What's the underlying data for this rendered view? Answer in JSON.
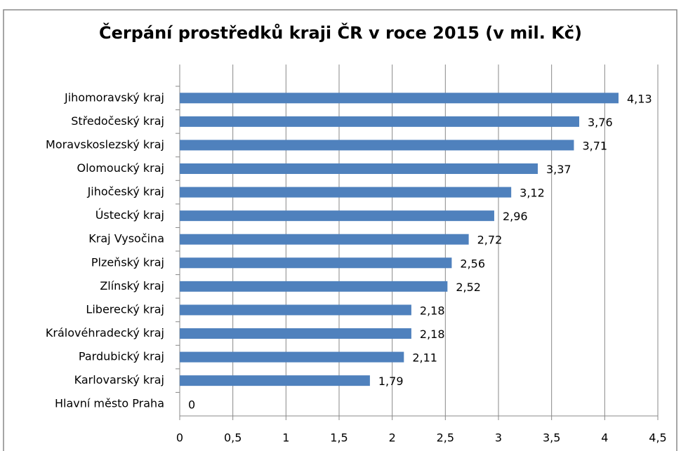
{
  "chart_data": {
    "type": "barh",
    "title": "Čerpání prostředků kraji ČR v roce 2015 (v mil. Kč)",
    "categories": [
      "Jihomoravský kraj",
      "Středočeský kraj",
      "Moravskoslezský kraj",
      "Olomoucký kraj",
      "Jihočeský kraj",
      "Ústecký kraj",
      "Kraj Vysočina",
      "Plzeňský kraj",
      "Zlínský kraj",
      "Liberecký kraj",
      "Královéhradecký kraj",
      "Pardubický kraj",
      "Karlovarský kraj",
      "Hlavní město Praha"
    ],
    "values": [
      4.13,
      3.76,
      3.71,
      3.37,
      3.12,
      2.96,
      2.72,
      2.56,
      2.52,
      2.18,
      2.18,
      2.11,
      1.79,
      0
    ],
    "value_labels": [
      "4,13",
      "3,76",
      "3,71",
      "3,37",
      "3,12",
      "2,96",
      "2,72",
      "2,56",
      "2,52",
      "2,18",
      "2,18",
      "2,11",
      "1,79",
      "0"
    ],
    "color": "#4f81bd",
    "xlim": [
      0,
      4.5
    ],
    "xticks": [
      0,
      {
        "value": 0.5,
        "label": "0,5"
      },
      1,
      {
        "value": 1.5,
        "label": "1,5"
      },
      2,
      {
        "value": 2.5,
        "label": "2,5"
      },
      3,
      {
        "value": 3.5,
        "label": "3,5"
      },
      4,
      {
        "value": 4.5,
        "label": "4,5"
      }
    ],
    "grid": true
  }
}
